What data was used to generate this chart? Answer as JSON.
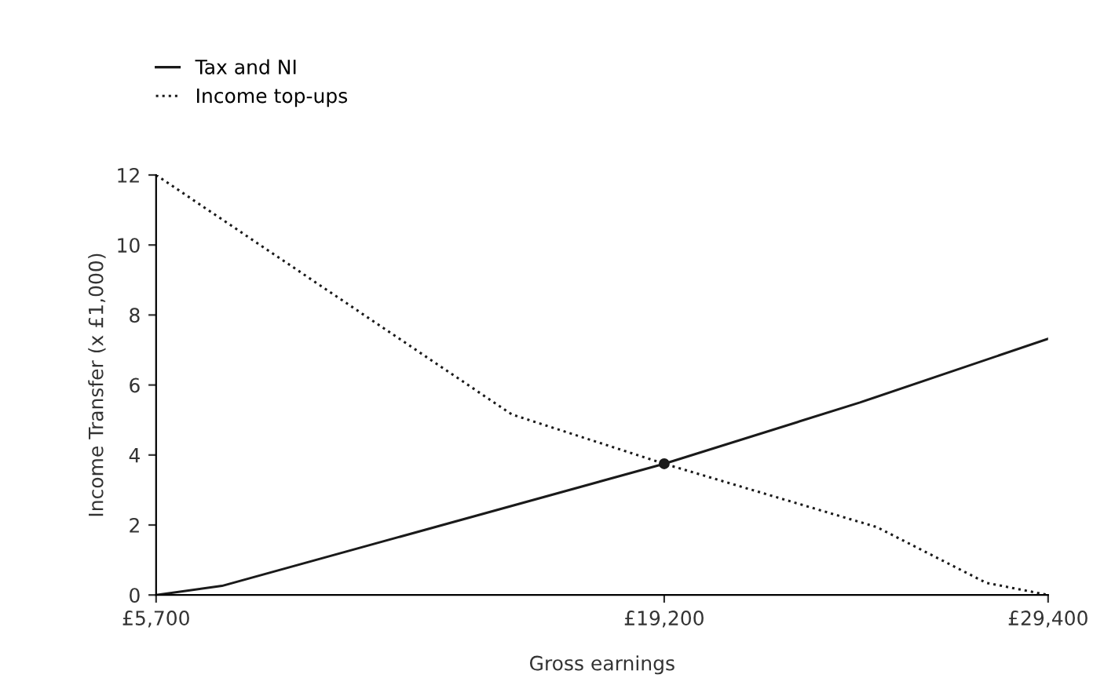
{
  "chart_data": {
    "type": "line",
    "xlabel": "Gross earnings",
    "ylabel": "Income Transfer (x £1,000)",
    "xlim": [
      5700,
      29400
    ],
    "xticks": [
      {
        "value": 5700,
        "label": "£5,700"
      },
      {
        "value": 19200,
        "label": "£19,200"
      },
      {
        "value": 29400,
        "label": "£29,400"
      }
    ],
    "ylim": [
      0,
      12
    ],
    "yticks": [
      0,
      2,
      4,
      6,
      8,
      10,
      12
    ],
    "grid": false,
    "legend": "top left",
    "marker": "none",
    "series": [
      {
        "name": "Tax and NI",
        "color": "#1a1a1a",
        "line_style": "solid",
        "x": [
          5700,
          7450,
          19200,
          24400,
          29400
        ],
        "values": [
          0,
          0.26,
          3.75,
          5.5,
          7.32
        ]
      },
      {
        "name": "Income top-ups",
        "color": "#1a1a1a",
        "line_style": "dotted",
        "x": [
          5700,
          15150,
          19200,
          24850,
          27750,
          29400
        ],
        "values": [
          12,
          5.16,
          3.75,
          1.94,
          0.35,
          0
        ]
      },
      {
        "type": "scatter",
        "color": "#1a1a1a",
        "marker": "circle",
        "x": [
          19200
        ],
        "values": [
          3.75
        ]
      }
    ]
  }
}
